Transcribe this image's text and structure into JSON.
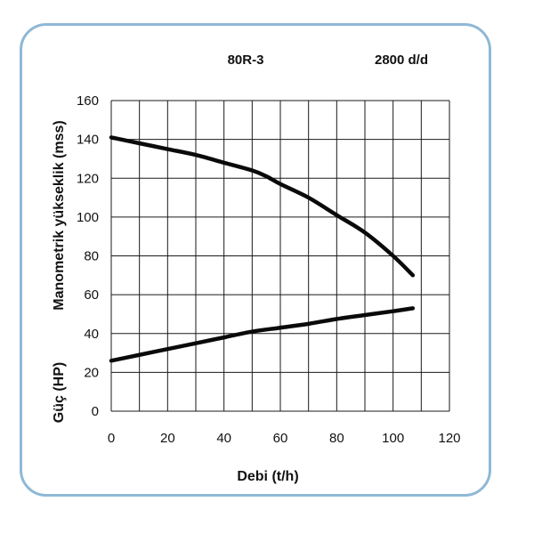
{
  "chart_data": {
    "type": "line",
    "model": "80R-3",
    "speed": "2800 d/d",
    "xlabel": "Debi (t/h)",
    "ylabel_head": "Manometrik yükseklik (mss)",
    "ylabel_power": "Güç (HP)",
    "xlim": [
      0,
      120
    ],
    "ylim": [
      0,
      160
    ],
    "x_ticks": [
      0,
      20,
      40,
      60,
      80,
      100,
      120
    ],
    "y_ticks": [
      0,
      20,
      40,
      60,
      80,
      100,
      120,
      140,
      160
    ],
    "grid": true,
    "series": [
      {
        "x": [
          0,
          10,
          20,
          30,
          40,
          50,
          55,
          60,
          70,
          80,
          90,
          100,
          107
        ],
        "y": [
          141,
          138,
          135,
          132,
          128,
          124,
          121,
          117,
          110,
          101,
          92,
          80,
          70
        ]
      },
      {
        "x": [
          0,
          10,
          20,
          30,
          40,
          50,
          60,
          70,
          80,
          90,
          100,
          107
        ],
        "y": [
          26,
          29,
          32,
          35,
          38,
          41,
          43,
          45,
          47.5,
          49.5,
          51.5,
          53
        ]
      }
    ]
  },
  "colors": {
    "frame": "#8fb8d6",
    "grid": "#1a1a1a",
    "curve": "#0a0a0a"
  }
}
